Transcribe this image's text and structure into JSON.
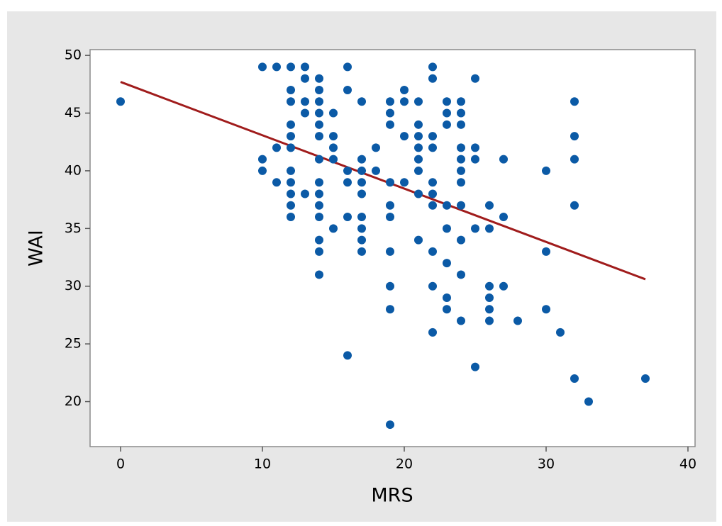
{
  "chart_data": {
    "type": "scatter",
    "x_label": "MRS",
    "y_label": "WAI",
    "x": [
      0,
      10,
      10,
      10,
      11,
      11,
      11,
      12,
      12,
      12,
      12,
      12,
      12,
      12,
      12,
      12,
      12,
      12,
      13,
      13,
      13,
      13,
      13,
      14,
      14,
      14,
      14,
      14,
      14,
      14,
      14,
      14,
      14,
      14,
      14,
      14,
      14,
      15,
      15,
      15,
      15,
      15,
      16,
      16,
      16,
      16,
      16,
      16,
      17,
      17,
      17,
      17,
      17,
      17,
      17,
      17,
      17,
      18,
      18,
      19,
      19,
      19,
      19,
      19,
      19,
      19,
      19,
      19,
      19,
      20,
      20,
      20,
      20,
      21,
      21,
      21,
      21,
      21,
      21,
      21,
      21,
      22,
      22,
      22,
      22,
      22,
      22,
      22,
      22,
      22,
      22,
      23,
      23,
      23,
      23,
      23,
      23,
      23,
      23,
      24,
      24,
      24,
      24,
      24,
      24,
      24,
      24,
      24,
      24,
      24,
      25,
      25,
      25,
      25,
      25,
      26,
      26,
      26,
      26,
      26,
      26,
      27,
      27,
      27,
      28,
      30,
      30,
      30,
      31,
      32,
      32,
      32,
      32,
      32,
      33,
      37
    ],
    "values": [
      46,
      49,
      41,
      40,
      49,
      42,
      39,
      49,
      47,
      46,
      44,
      43,
      42,
      40,
      39,
      38,
      37,
      36,
      49,
      48,
      46,
      45,
      38,
      48,
      47,
      46,
      45,
      44,
      43,
      41,
      39,
      38,
      37,
      36,
      34,
      33,
      31,
      45,
      43,
      42,
      41,
      35,
      49,
      47,
      40,
      39,
      36,
      24,
      46,
      41,
      40,
      39,
      38,
      36,
      35,
      34,
      33,
      42,
      40,
      46,
      45,
      44,
      39,
      37,
      36,
      33,
      30,
      28,
      18,
      47,
      46,
      43,
      39,
      46,
      44,
      43,
      42,
      41,
      40,
      38,
      34,
      49,
      48,
      43,
      42,
      39,
      38,
      37,
      33,
      30,
      26,
      46,
      45,
      44,
      37,
      35,
      32,
      29,
      28,
      46,
      45,
      44,
      42,
      41,
      40,
      39,
      37,
      34,
      31,
      27,
      48,
      42,
      41,
      35,
      23,
      37,
      35,
      30,
      29,
      28,
      27,
      41,
      36,
      30,
      27,
      40,
      33,
      28,
      26,
      46,
      43,
      41,
      37,
      22,
      20,
      22
    ],
    "color": "#0b5aa6",
    "fit_line": {
      "x": [
        0,
        37
      ],
      "values": [
        47.7,
        30.6
      ],
      "color": "#a01c1c"
    },
    "xlim": [
      -2.15,
      40.5
    ],
    "ylim": [
      16.1,
      50.5
    ],
    "xticks": [
      0,
      10,
      20,
      30,
      40
    ],
    "yticks": [
      20,
      25,
      30,
      35,
      40,
      45,
      50
    ]
  }
}
